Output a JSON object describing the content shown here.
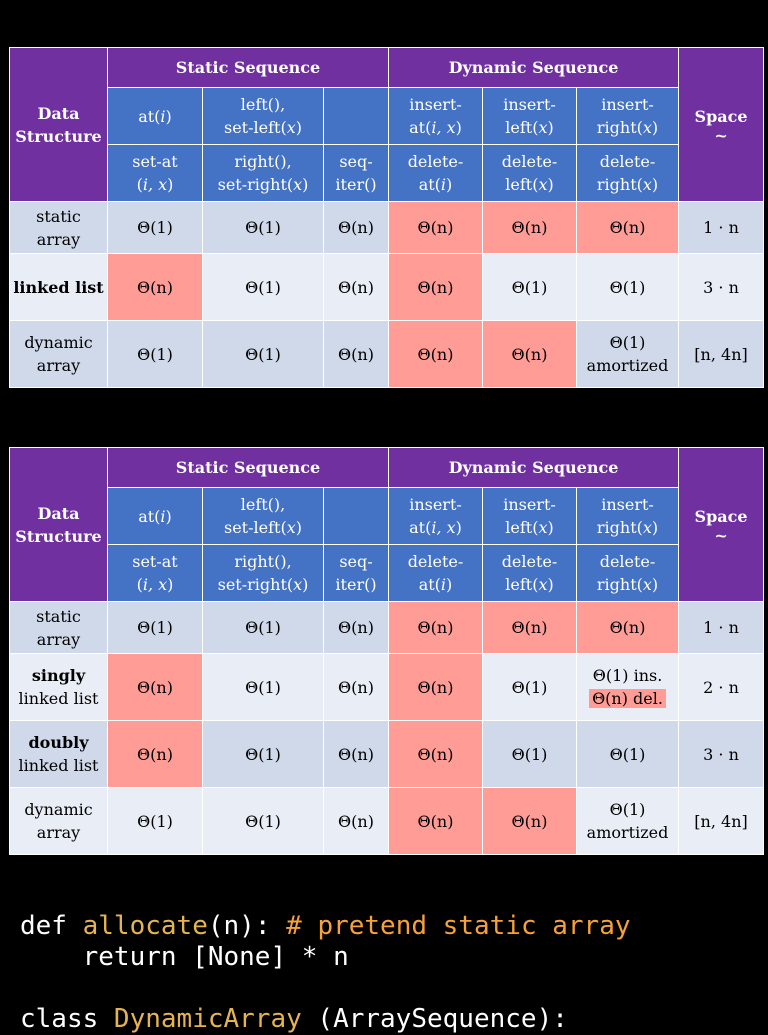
{
  "tables": [
    {
      "header": {
        "data_structure": [
          "Data",
          "Structure"
        ],
        "static_sequence": "Static Sequence",
        "dynamic_sequence": "Dynamic Sequence",
        "space": "Space",
        "space_sub": "~",
        "ops_row1": [
          [
            "at(",
            "i",
            ")"
          ],
          [
            "left(),",
            "set-left(",
            "x",
            ")"
          ],
          [
            ""
          ],
          [
            "insert-",
            "at(",
            "i, x",
            ")"
          ],
          [
            "insert-",
            "left(",
            "x",
            ")"
          ],
          [
            "insert-",
            "right(",
            "x",
            ")"
          ]
        ],
        "ops_row2": [
          [
            "set-at",
            "(",
            "i, x",
            ")"
          ],
          [
            "right(),",
            "set-right(",
            "x",
            ")"
          ],
          [
            "seq-",
            "iter()"
          ],
          [
            "delete-",
            "at(",
            "i",
            ")"
          ],
          [
            "delete-",
            "left(",
            "x",
            ")"
          ],
          [
            "delete-",
            "right(",
            "x",
            ")"
          ]
        ]
      },
      "rows": [
        {
          "name_bold": "",
          "name": "static array",
          "cells": [
            "Θ(1)",
            "Θ(1)",
            "Θ(n)",
            "Θ(n)",
            "Θ(n)",
            "Θ(n)"
          ],
          "space": "1 · n"
        },
        {
          "name_bold": "linked list",
          "name": "",
          "cells": [
            "Θ(n)",
            "Θ(1)",
            "Θ(n)",
            "Θ(n)",
            "Θ(1)",
            "Θ(1)"
          ],
          "space": "3 · n"
        },
        {
          "name_bold": "",
          "name": "dynamic array",
          "cells": [
            "Θ(1)",
            "Θ(1)",
            "Θ(n)",
            "Θ(n)",
            "Θ(n)",
            "Θ(1) amortized"
          ],
          "space": "[n, 4n]"
        }
      ]
    },
    {
      "header": {
        "data_structure": [
          "Data",
          "Structure"
        ],
        "static_sequence": "Static Sequence",
        "dynamic_sequence": "Dynamic Sequence",
        "space": "Space",
        "space_sub": "~"
      },
      "rows": [
        {
          "name_bold": "",
          "name": "static array",
          "cells": [
            "Θ(1)",
            "Θ(1)",
            "Θ(n)",
            "Θ(n)",
            "Θ(n)",
            "Θ(n)"
          ],
          "space": "1 · n"
        },
        {
          "name_bold": "singly",
          "name": "linked list",
          "cells": [
            "Θ(n)",
            "Θ(1)",
            "Θ(n)",
            "Θ(n)",
            "Θ(1)",
            "Θ(1) ins."
          ],
          "cell_extra": "Θ(n) del.",
          "space": "2 · n"
        },
        {
          "name_bold": "doubly",
          "name": "linked list",
          "cells": [
            "Θ(n)",
            "Θ(1)",
            "Θ(n)",
            "Θ(n)",
            "Θ(1)",
            "Θ(1)"
          ],
          "space": "3 · n"
        },
        {
          "name_bold": "",
          "name": "dynamic array",
          "cells": [
            "Θ(1)",
            "Θ(1)",
            "Θ(n)",
            "Θ(n)",
            "Θ(n)",
            "Θ(1) amortized"
          ],
          "space": "[n, 4n]"
        }
      ]
    }
  ],
  "colors": {
    "background": "#000000",
    "header_purple": "#7030a0",
    "header_blue": "#4472c4",
    "row_dark": "#cfd9ea",
    "row_light": "#e9eef6",
    "slow_highlight": "#ff9c95",
    "code_function": "#e5b451",
    "code_comment": "#f7a13a"
  },
  "code": {
    "line1": {
      "kw": "def ",
      "fn": "allocate",
      "args": "(n): ",
      "comment": "# pretend static array"
    },
    "line2": "    return [None] * n",
    "line3": {
      "kw": "class ",
      "fn": "DynamicArray",
      "rest": " (ArraySequence):"
    }
  }
}
